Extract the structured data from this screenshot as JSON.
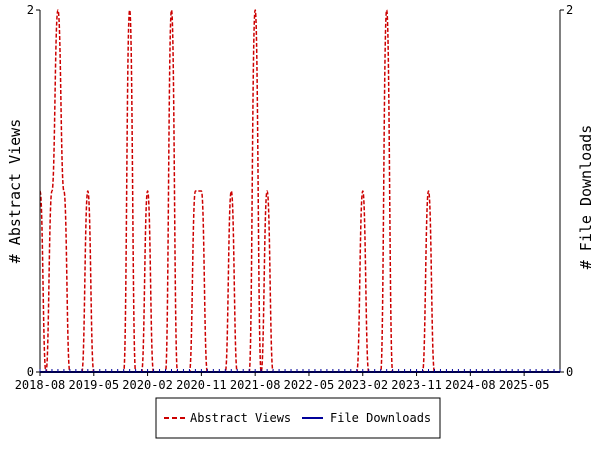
{
  "chart_data": {
    "type": "line",
    "title": "",
    "ylabel_left": "# Abstract Views",
    "ylabel_right": "# File Downloads",
    "ylim": [
      0,
      2
    ],
    "y_ticks_left": [
      "0",
      "2"
    ],
    "y_ticks_right": [
      "0",
      "2"
    ],
    "x_start": "2018-08",
    "x_end": "2025-11",
    "x_tick_labels": [
      "2018-08",
      "2019-05",
      "2020-02",
      "2020-11",
      "2021-08",
      "2022-05",
      "2023-02",
      "2023-11",
      "2024-08",
      "2025-05"
    ],
    "series": [
      {
        "name": "Abstract Views",
        "color": "#cc0000",
        "dash": "dashed",
        "points": [
          [
            "2018-08",
            1
          ],
          [
            "2018-09",
            0
          ],
          [
            "2018-10",
            1
          ],
          [
            "2018-11",
            2
          ],
          [
            "2018-12",
            1
          ],
          [
            "2019-01",
            0
          ],
          [
            "2019-02",
            0
          ],
          [
            "2019-03",
            0
          ],
          [
            "2019-04",
            1
          ],
          [
            "2019-05",
            0
          ],
          [
            "2019-06",
            0
          ],
          [
            "2019-07",
            0
          ],
          [
            "2019-08",
            0
          ],
          [
            "2019-09",
            0
          ],
          [
            "2019-10",
            0
          ],
          [
            "2019-11",
            2
          ],
          [
            "2019-12",
            0
          ],
          [
            "2020-01",
            0
          ],
          [
            "2020-02",
            1
          ],
          [
            "2020-03",
            0
          ],
          [
            "2020-04",
            0
          ],
          [
            "2020-05",
            0
          ],
          [
            "2020-06",
            2
          ],
          [
            "2020-07",
            0
          ],
          [
            "2020-08",
            0
          ],
          [
            "2020-09",
            0
          ],
          [
            "2020-10",
            1
          ],
          [
            "2020-11",
            1
          ],
          [
            "2020-12",
            0
          ],
          [
            "2021-01",
            0
          ],
          [
            "2021-02",
            0
          ],
          [
            "2021-03",
            0
          ],
          [
            "2021-04",
            1
          ],
          [
            "2021-05",
            0
          ],
          [
            "2021-06",
            0
          ],
          [
            "2021-07",
            0
          ],
          [
            "2021-08",
            2
          ],
          [
            "2021-09",
            0
          ],
          [
            "2021-10",
            1
          ],
          [
            "2021-11",
            0
          ],
          [
            "2021-12",
            0
          ],
          [
            "2022-01",
            0
          ],
          [
            "2022-02",
            0
          ],
          [
            "2022-03",
            0
          ],
          [
            "2022-04",
            0
          ],
          [
            "2022-05",
            0
          ],
          [
            "2022-06",
            0
          ],
          [
            "2022-07",
            0
          ],
          [
            "2022-08",
            0
          ],
          [
            "2022-09",
            0
          ],
          [
            "2022-10",
            0
          ],
          [
            "2022-11",
            0
          ],
          [
            "2022-12",
            0
          ],
          [
            "2023-01",
            0
          ],
          [
            "2023-02",
            1
          ],
          [
            "2023-03",
            0
          ],
          [
            "2023-04",
            0
          ],
          [
            "2023-05",
            0
          ],
          [
            "2023-06",
            2
          ],
          [
            "2023-07",
            0
          ],
          [
            "2023-08",
            0
          ],
          [
            "2023-09",
            0
          ],
          [
            "2023-10",
            0
          ],
          [
            "2023-11",
            0
          ],
          [
            "2023-12",
            0
          ],
          [
            "2024-01",
            1
          ],
          [
            "2024-02",
            0
          ],
          [
            "2024-03",
            0
          ],
          [
            "2024-04",
            0
          ],
          [
            "2024-05",
            0
          ],
          [
            "2024-06",
            0
          ],
          [
            "2024-07",
            0
          ],
          [
            "2024-08",
            0
          ],
          [
            "2024-09",
            0
          ],
          [
            "2024-10",
            0
          ],
          [
            "2024-11",
            0
          ],
          [
            "2024-12",
            0
          ],
          [
            "2025-01",
            0
          ],
          [
            "2025-02",
            0
          ],
          [
            "2025-03",
            0
          ],
          [
            "2025-04",
            0
          ],
          [
            "2025-05",
            0
          ],
          [
            "2025-06",
            0
          ],
          [
            "2025-07",
            0
          ],
          [
            "2025-08",
            0
          ],
          [
            "2025-09",
            0
          ],
          [
            "2025-10",
            0
          ],
          [
            "2025-11",
            0
          ]
        ]
      },
      {
        "name": "File Downloads",
        "color": "#000099",
        "dash": "solid",
        "constant_value": 0
      }
    ],
    "legend": {
      "placement": "bottom-center",
      "items": [
        "Abstract Views",
        "File Downloads"
      ]
    },
    "grid": false
  }
}
